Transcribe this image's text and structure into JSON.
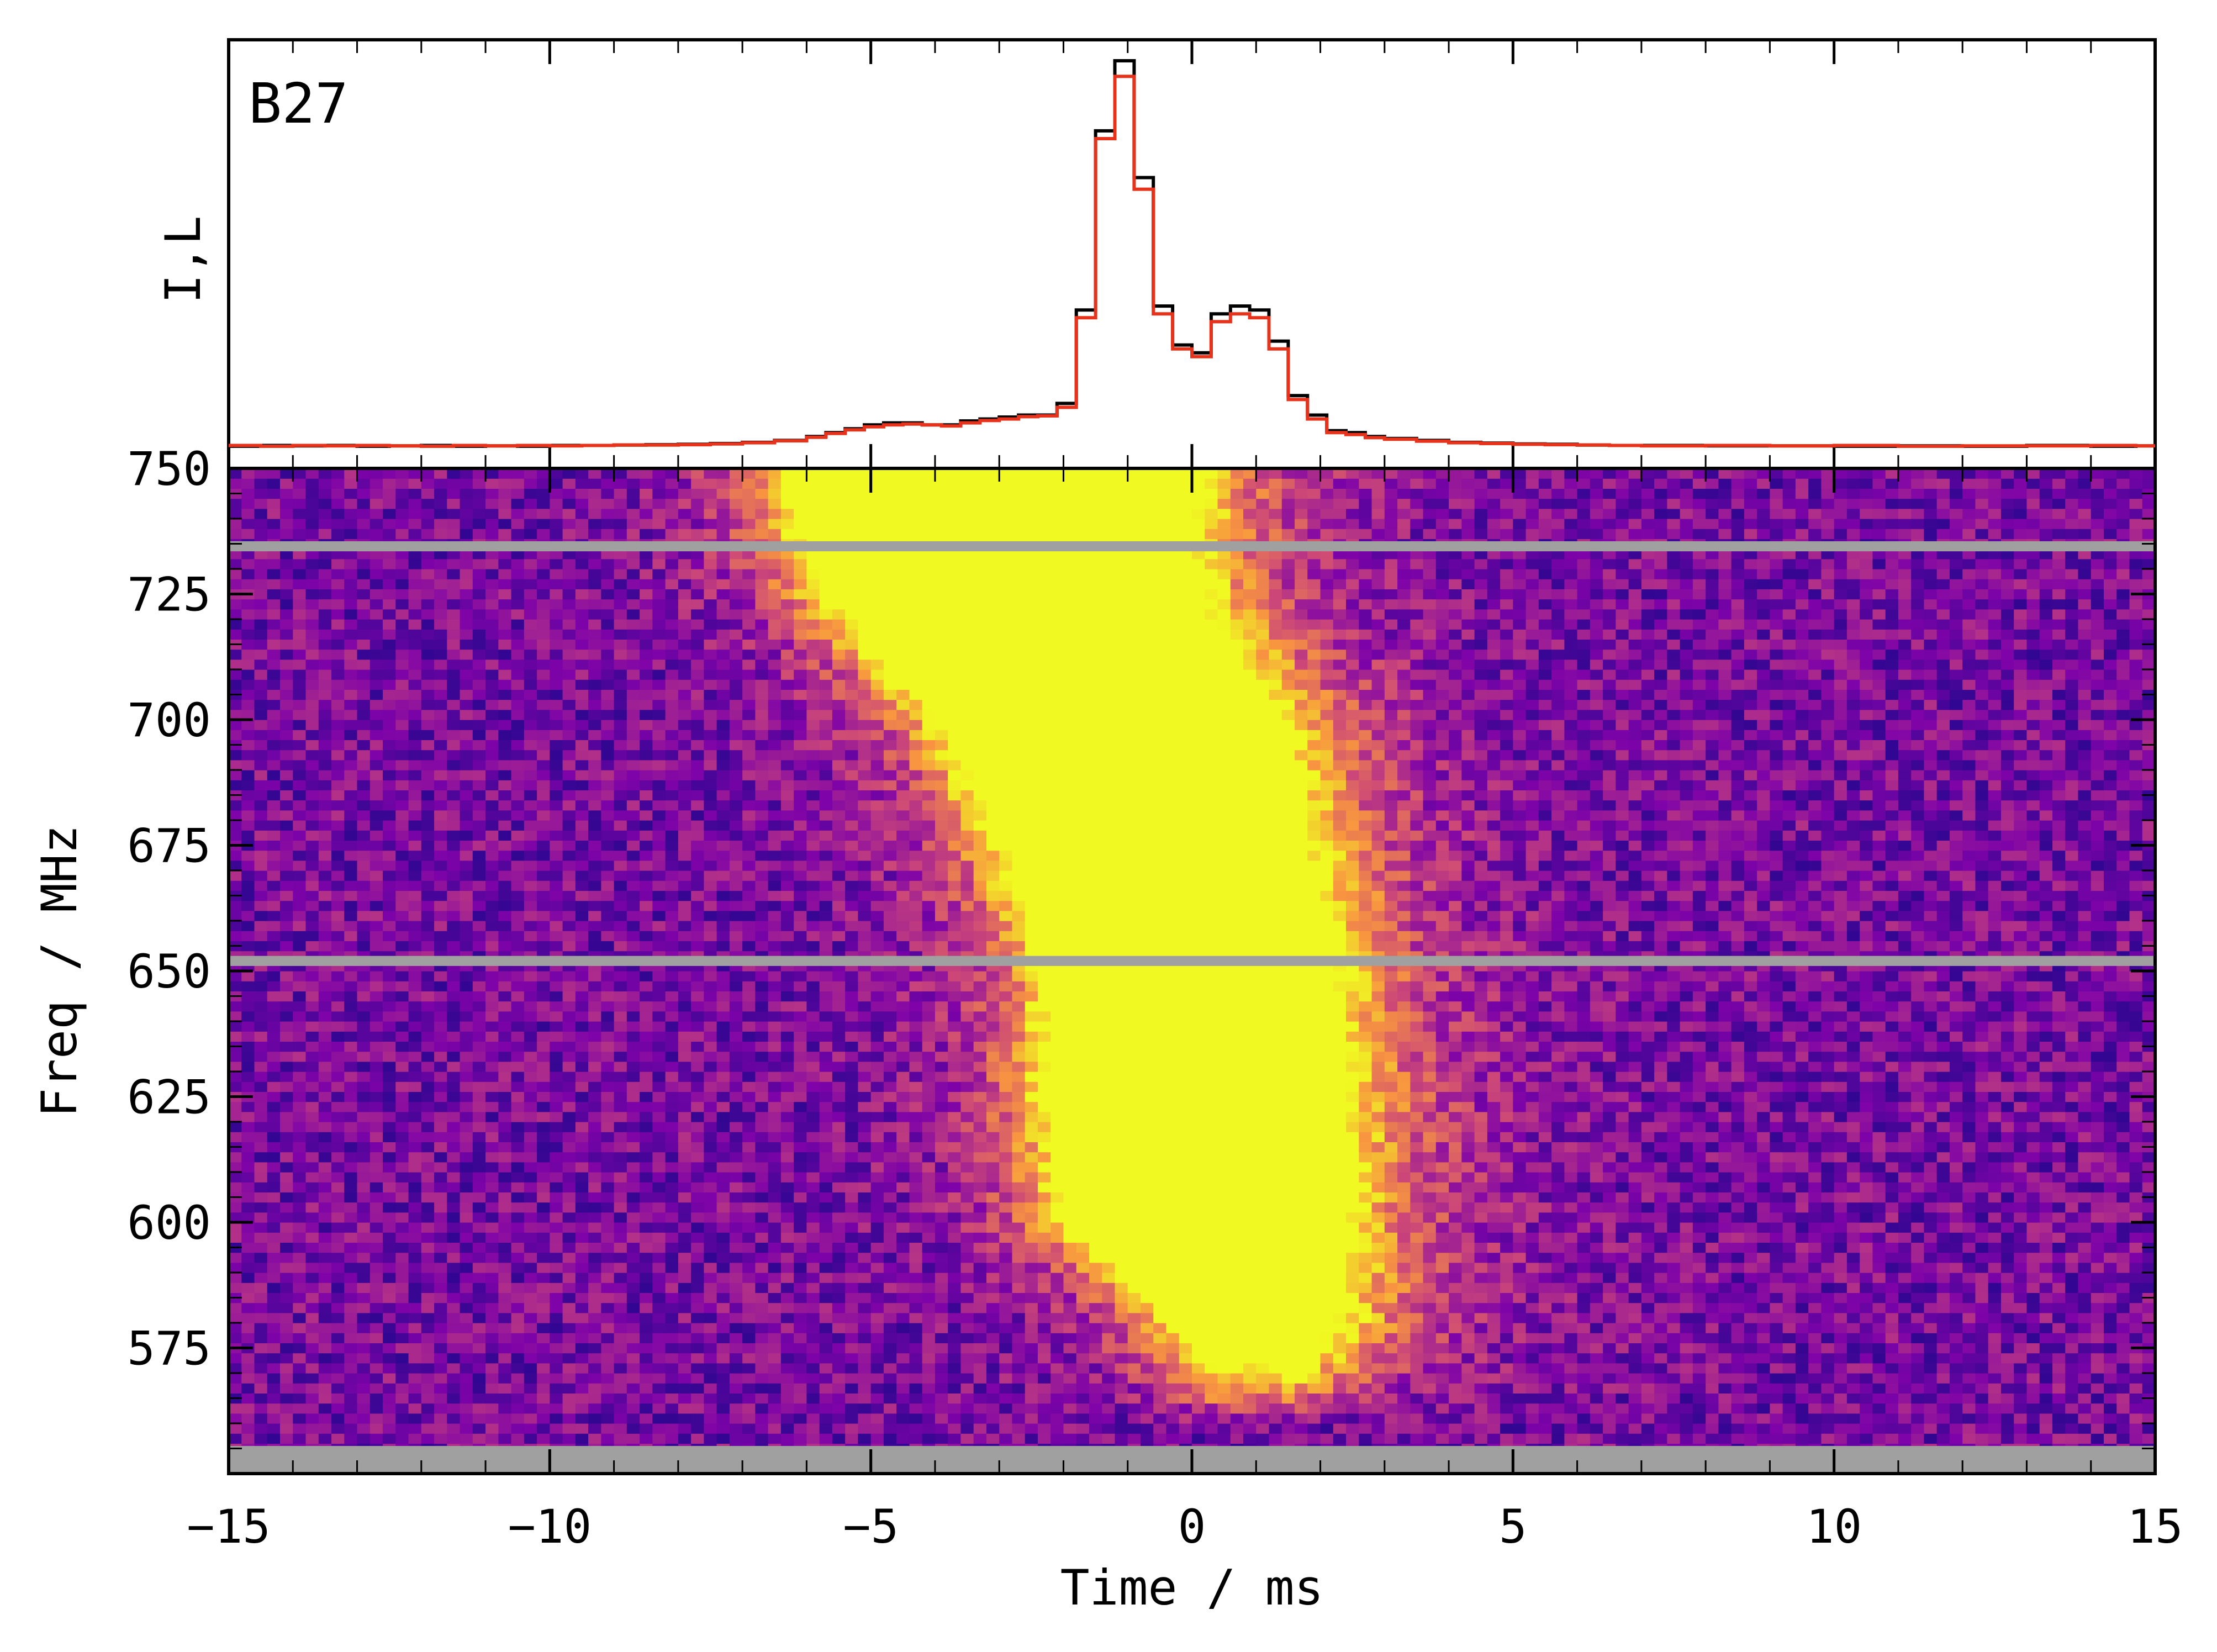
{
  "chart_data": [
    {
      "type": "line",
      "panel": "top",
      "annotation": "B27",
      "ylabel": "I,L",
      "xlabel": "",
      "xlim": [
        -15,
        15
      ],
      "series": [
        {
          "name": "I",
          "color": "#000000",
          "x": [
            -15,
            -14.5,
            -14,
            -13.5,
            -13,
            -12.5,
            -12,
            -11.5,
            -11,
            -10.5,
            -10,
            -9.5,
            -9,
            -8.5,
            -8,
            -7.5,
            -7,
            -6.5,
            -6,
            -5.7,
            -5.4,
            -5.1,
            -4.8,
            -4.5,
            -4.2,
            -3.9,
            -3.6,
            -3.3,
            -3.0,
            -2.7,
            -2.4,
            -2.1,
            -1.8,
            -1.5,
            -1.2,
            -0.9,
            -0.6,
            -0.3,
            0,
            0.3,
            0.6,
            0.9,
            1.2,
            1.5,
            1.8,
            2.1,
            2.4,
            2.7,
            3.0,
            3.5,
            4,
            4.5,
            5,
            5.5,
            6,
            6.5,
            7,
            8,
            9,
            10,
            11,
            12,
            13,
            14,
            14.7
          ],
          "values": [
            0.01,
            0.012,
            0.011,
            0.012,
            0.01,
            0.011,
            0.012,
            0.01,
            0.011,
            0.01,
            0.012,
            0.012,
            0.013,
            0.014,
            0.015,
            0.017,
            0.02,
            0.025,
            0.035,
            0.045,
            0.055,
            0.065,
            0.07,
            0.07,
            0.065,
            0.065,
            0.075,
            0.08,
            0.085,
            0.09,
            0.09,
            0.12,
            0.36,
            0.82,
            1.0,
            0.7,
            0.37,
            0.27,
            0.25,
            0.35,
            0.37,
            0.36,
            0.28,
            0.14,
            0.09,
            0.05,
            0.045,
            0.035,
            0.03,
            0.025,
            0.02,
            0.018,
            0.016,
            0.015,
            0.013,
            0.012,
            0.012,
            0.011,
            0.011,
            0.01,
            0.011,
            0.01,
            0.012,
            0.01,
            0.011
          ]
        },
        {
          "name": "L",
          "color": "#e8331c",
          "x": [
            -15,
            -14.5,
            -14,
            -13.5,
            -13,
            -12.5,
            -12,
            -11.5,
            -11,
            -10.5,
            -10,
            -9.5,
            -9,
            -8.5,
            -8,
            -7.5,
            -7,
            -6.5,
            -6,
            -5.7,
            -5.4,
            -5.1,
            -4.8,
            -4.5,
            -4.2,
            -3.9,
            -3.6,
            -3.3,
            -3.0,
            -2.7,
            -2.4,
            -2.1,
            -1.8,
            -1.5,
            -1.2,
            -0.9,
            -0.6,
            -0.3,
            0,
            0.3,
            0.6,
            0.9,
            1.2,
            1.5,
            1.8,
            2.1,
            2.4,
            2.7,
            3.0,
            3.5,
            4,
            4.5,
            5,
            5.5,
            6,
            6.5,
            7,
            8,
            9,
            10,
            11,
            12,
            13,
            14,
            14.7
          ],
          "values": [
            0.012,
            0.01,
            0.012,
            0.011,
            0.012,
            0.011,
            0.01,
            0.012,
            0.011,
            0.012,
            0.011,
            0.012,
            0.013,
            0.013,
            0.014,
            0.016,
            0.019,
            0.024,
            0.033,
            0.043,
            0.052,
            0.06,
            0.065,
            0.067,
            0.065,
            0.062,
            0.07,
            0.076,
            0.08,
            0.086,
            0.088,
            0.11,
            0.34,
            0.8,
            0.96,
            0.67,
            0.35,
            0.26,
            0.24,
            0.33,
            0.35,
            0.34,
            0.26,
            0.13,
            0.08,
            0.045,
            0.04,
            0.032,
            0.028,
            0.023,
            0.019,
            0.017,
            0.015,
            0.014,
            0.013,
            0.012,
            0.011,
            0.012,
            0.011,
            0.012,
            0.01,
            0.011,
            0.011,
            0.012,
            0.011
          ]
        }
      ]
    },
    {
      "type": "heatmap",
      "panel": "bottom",
      "colormap": "plasma",
      "xlabel": "Time / ms",
      "ylabel": "Freq / MHz",
      "xlim": [
        -15,
        15
      ],
      "ylim": [
        550,
        750
      ],
      "xticks": [
        "−15",
        "−10",
        "−5",
        "0",
        "5",
        "10",
        "15"
      ],
      "yticks": [
        "575",
        "600",
        "625",
        "650",
        "675",
        "700",
        "725",
        "750"
      ],
      "masked_color": "#a0a0a0",
      "masked_bands_mhz": [
        [
          733.5,
          735.5
        ],
        [
          651,
          653
        ],
        [
          550,
          555.5
        ]
      ],
      "burst_ridge": [
        {
          "freq": 745,
          "t_start": -5.8,
          "t_end": -0.6
        },
        {
          "freq": 725,
          "t_start": -5.3,
          "t_end": -0.5
        },
        {
          "freq": 700,
          "t_start": -3.5,
          "t_end": 0.8
        },
        {
          "freq": 675,
          "t_start": -2.5,
          "t_end": 1.2
        },
        {
          "freq": 650,
          "t_start": -1.8,
          "t_end": 1.6
        },
        {
          "freq": 625,
          "t_start": -1.8,
          "t_end": 1.8
        },
        {
          "freq": 600,
          "t_start": -1.5,
          "t_end": 1.8
        },
        {
          "freq": 580,
          "t_start": 0.2,
          "t_end": 1.7
        }
      ]
    }
  ]
}
